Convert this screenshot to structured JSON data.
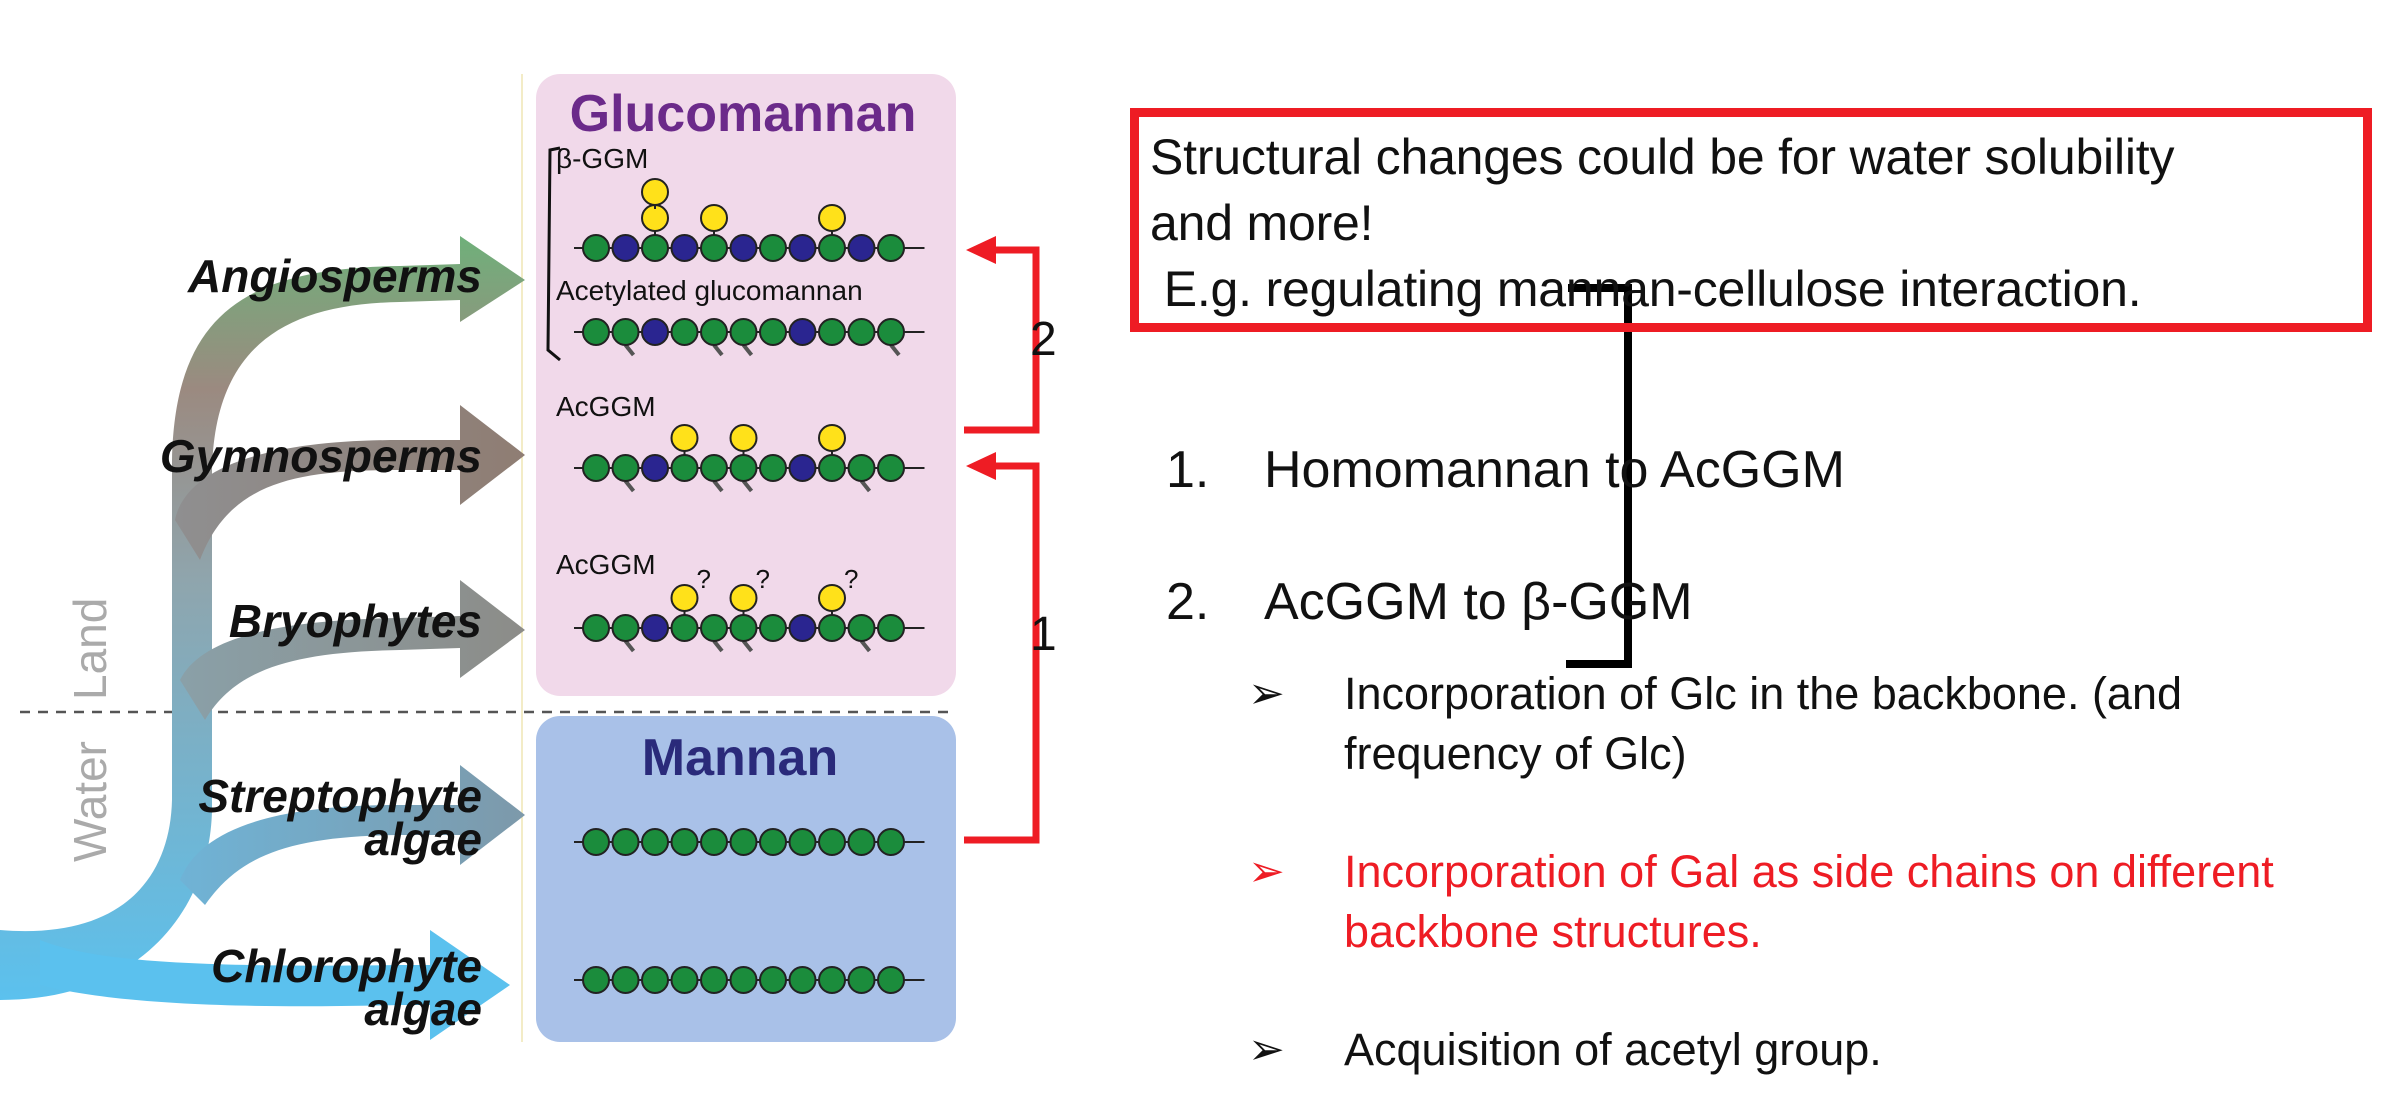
{
  "colors": {
    "accent_red": "#ee1c24",
    "glucomannan_panel": "#f1d9ea",
    "mannan_panel": "#a9c1e8",
    "glucomannan_title": "#6b2a8a",
    "mannan_title": "#2a2a7a",
    "glucose": "#1b8c3c",
    "mannose": "#2a2590",
    "galactose": "#ffe11a",
    "arrow_angiosperms": "#6fb07a",
    "arrow_gymnosperms": "#8f7d73",
    "arrow_algae": "#5bc1ee"
  },
  "figure": {
    "lineages": [
      {
        "line1": "Angiosperms",
        "line2": ""
      },
      {
        "line1": "Gymnosperms",
        "line2": ""
      },
      {
        "line1": "Bryophytes",
        "line2": ""
      },
      {
        "line1": "Streptophyte",
        "line2": "algae"
      },
      {
        "line1": "Chlorophyte",
        "line2": "algae"
      }
    ],
    "habitat": {
      "land": "Land",
      "water": "Water"
    },
    "glucomannan_title": "Glucomannan",
    "mannan_title": "Mannan",
    "labels": {
      "beta_ggm": "β-GGM",
      "acetylated": "Acetylated glucomannan",
      "acggm_gymno": "AcGGM",
      "acggm_bryo": "AcGGM",
      "question": "?"
    },
    "transitions": {
      "first": "1",
      "second": "2"
    }
  },
  "callout": {
    "lines": [
      "Structural changes could be for water solubility",
      "and more!",
      " E.g. regulating mannan-cellulose interaction."
    ]
  },
  "steps": [
    {
      "number": "1.",
      "text": "Homomannan to AcGGM"
    },
    {
      "number": "2.",
      "text": "AcGGM to β-GGM"
    }
  ],
  "bullets": [
    {
      "mark": "➢",
      "text": "Incorporation of Glc in the backbone. (and frequency of Glc)",
      "highlight": false
    },
    {
      "mark": "➢",
      "text": "Incorporation of Gal as side chains on different backbone structures.",
      "highlight": true
    },
    {
      "mark": "➢",
      "text": "Acquisition of acetyl group.",
      "highlight": false
    }
  ]
}
